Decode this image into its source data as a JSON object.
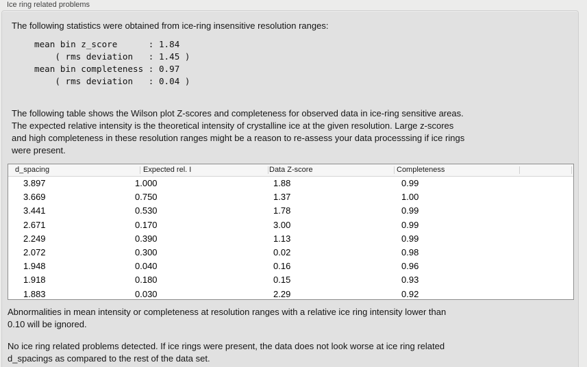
{
  "panel": {
    "title": "Ice ring related problems"
  },
  "texts": {
    "intro": "The following statistics were obtained from ice-ring insensitive resolution ranges:",
    "stats_block": "mean bin z_score      : 1.84\n    ( rms deviation   : 1.45 )\nmean bin completeness : 0.97\n    ( rms deviation   : 0.04 )",
    "table_intro": "The following table shows the Wilson plot Z-scores and completeness for observed data in ice-ring sensitive areas.\nThe expected relative intensity is the theoretical intensity of crystalline ice at the given resolution. Large z-scores\nand high completeness in these resolution ranges might be a reason to re-assess your data processsing if ice rings\nwere present.",
    "note": "Abnormalities in mean intensity or completeness at resolution ranges with a relative ice ring intensity lower than\n0.10 will be ignored.",
    "conclusion": "No ice ring related problems detected. If ice rings were present, the data does not look worse at ice ring related\nd_spacings as compared to the rest of the data set."
  },
  "stats": {
    "mean_bin_z_score": "1.84",
    "z_score_rms_deviation": "1.45",
    "mean_bin_completeness": "0.97",
    "completeness_rms_deviation": "0.04"
  },
  "table": {
    "columns": [
      "d_spacing",
      "Expected rel. I",
      "Data Z-score",
      "Completeness"
    ],
    "rows": [
      [
        "3.897",
        "1.000",
        "1.88",
        "0.99"
      ],
      [
        "3.669",
        "0.750",
        "1.37",
        "1.00"
      ],
      [
        "3.441",
        "0.530",
        "1.78",
        "0.99"
      ],
      [
        "2.671",
        "0.170",
        "3.00",
        "0.99"
      ],
      [
        "2.249",
        "0.390",
        "1.13",
        "0.99"
      ],
      [
        "2.072",
        "0.300",
        "0.02",
        "0.98"
      ],
      [
        "1.948",
        "0.040",
        "0.16",
        "0.96"
      ],
      [
        "1.918",
        "0.180",
        "0.15",
        "0.93"
      ],
      [
        "1.883",
        "0.030",
        "2.29",
        "0.92"
      ]
    ]
  },
  "colors": {
    "outer_background": "#ececeb",
    "box_background": "#e1e1e1",
    "box_border": "#cfcfcf",
    "table_border": "#8e8e8e",
    "table_header_background": "#f6f6f6",
    "header_separator": "#d0d0d0",
    "text": "#141414",
    "title_text": "#3f3f3f"
  }
}
